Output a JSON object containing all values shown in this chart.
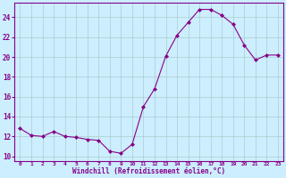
{
  "x": [
    0,
    1,
    2,
    3,
    4,
    5,
    6,
    7,
    8,
    9,
    10,
    11,
    12,
    13,
    14,
    15,
    16,
    17,
    18,
    19,
    20,
    21,
    22,
    23
  ],
  "y": [
    12.8,
    12.1,
    12.0,
    12.5,
    12.0,
    11.9,
    11.7,
    11.6,
    10.5,
    10.3,
    11.2,
    15.0,
    16.8,
    20.1,
    22.2,
    23.5,
    24.8,
    24.8,
    24.2,
    23.3,
    21.2,
    19.7,
    20.2,
    20.2
  ],
  "line_color": "#880088",
  "marker": "D",
  "marker_size": 2,
  "bg_color": "#cceeff",
  "grid_color": "#aacccc",
  "xlabel": "Windchill (Refroidissement éolien,°C)",
  "xlabel_color": "#880088",
  "tick_color": "#880088",
  "ylim": [
    9.5,
    25.5
  ],
  "yticks": [
    10,
    12,
    14,
    16,
    18,
    20,
    22,
    24
  ],
  "xlim": [
    -0.5,
    23.5
  ],
  "xticks": [
    0,
    1,
    2,
    3,
    4,
    5,
    6,
    7,
    8,
    9,
    10,
    11,
    12,
    13,
    14,
    15,
    16,
    17,
    18,
    19,
    20,
    21,
    22,
    23
  ]
}
